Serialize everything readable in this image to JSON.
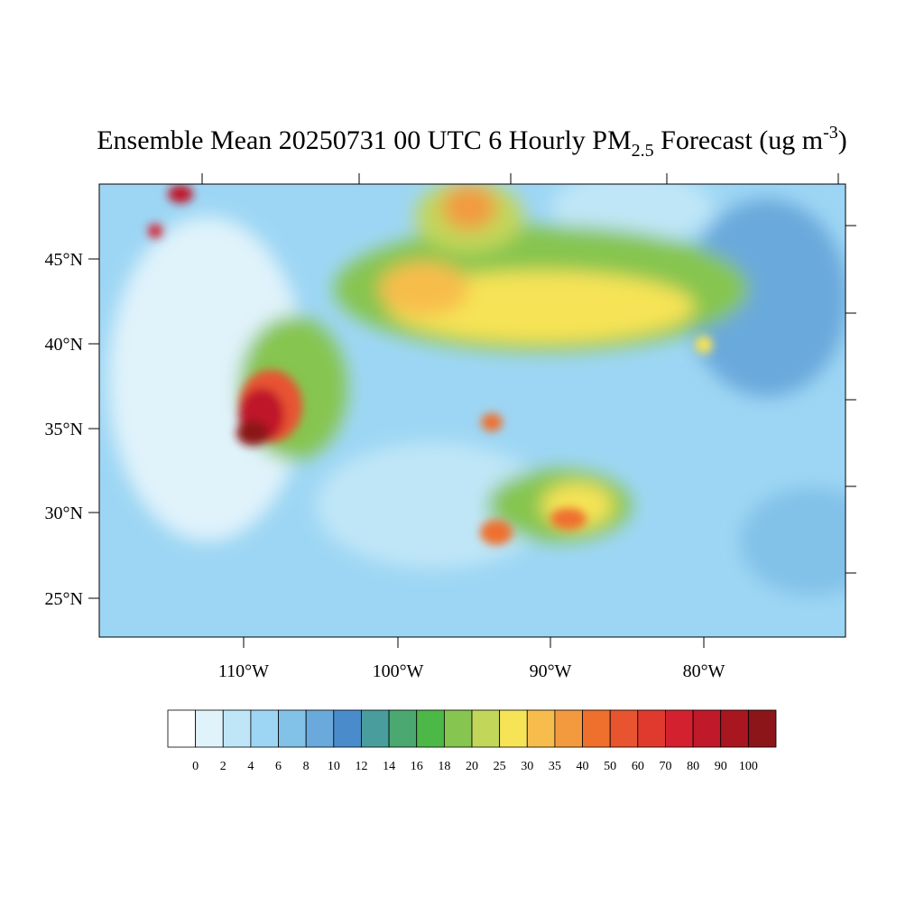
{
  "title": {
    "parts": [
      "Ensemble Mean 20250731 00 UTC 6 Hourly PM",
      "2.5",
      " Forecast (ug m",
      "-3",
      ")"
    ]
  },
  "lat_labels": [
    "45°N",
    "40°N",
    "35°N",
    "30°N",
    "25°N"
  ],
  "lon_labels": [
    "110°W",
    "100°W",
    "90°W",
    "80°W"
  ],
  "colorbar": {
    "levels": [
      0,
      2,
      4,
      6,
      8,
      10,
      12,
      14,
      16,
      18,
      20,
      25,
      30,
      35,
      40,
      50,
      60,
      70,
      80,
      90,
      100
    ],
    "colors": [
      "#ffffff",
      "#e0f3fb",
      "#bfe6f7",
      "#9dd6f4",
      "#82c1e8",
      "#6aa9dc",
      "#4a8ccb",
      "#4a9d9d",
      "#4aa870",
      "#4cb848",
      "#86c550",
      "#c2d65a",
      "#f6e356",
      "#f7bd4c",
      "#f39a3f",
      "#ef6f2d",
      "#e85330",
      "#e03a2f",
      "#d42130",
      "#c0192a",
      "#a8171f",
      "#8c1519"
    ]
  }
}
